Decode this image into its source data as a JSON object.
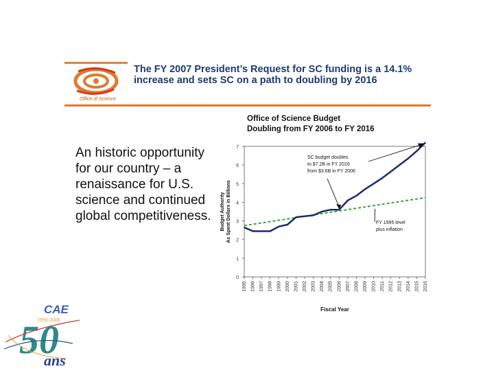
{
  "slide": {
    "logo_label": "Office of Science",
    "title": "The FY 2007 President’s Request for SC funding is a 14.1% increase and sets SC on a path to doubling by 2016",
    "body": "An historic opportunity for our country – a renaissance for U.S. science and continued global competitiveness.",
    "anniversary_logo": {
      "dates": "1956-2006",
      "letters": "CAE",
      "number": "50",
      "word": "ans"
    }
  },
  "colors": {
    "accent_orange": "#e07a2e",
    "title_blue": "#1f3a70",
    "budget_line": "#1c2a6e",
    "inflation_line": "#2fa83a"
  },
  "chart_data": {
    "type": "line",
    "title_line1": "Office of Science Budget",
    "title_line2": "Doubling from FY 2006 to FY 2016",
    "xlabel": "Fiscal Year",
    "ylabel_line1": "Budget Authority",
    "ylabel_line2": "As Spent Dollars in Billions",
    "ylim": [
      0,
      7
    ],
    "yticks": [
      0,
      1,
      2,
      3,
      4,
      5,
      6,
      7
    ],
    "x_tick_labels": [
      "1995",
      "1996",
      "1997",
      "1998",
      "1999",
      "2000",
      "2001",
      "2002",
      "2003",
      "2004",
      "2005",
      "2006",
      "2007",
      "2008",
      "2009",
      "2010",
      "2011",
      "2012",
      "2013",
      "2014",
      "2015",
      "2016"
    ],
    "series": [
      {
        "x": [
          1995,
          1996,
          1997,
          1998,
          1999,
          2000,
          2001,
          2002,
          2003,
          2004,
          2005,
          2006,
          2007,
          2008,
          2009,
          2010,
          2011,
          2012,
          2013,
          2014,
          2015,
          2016
        ],
        "values": [
          2.65,
          2.45,
          2.45,
          2.45,
          2.7,
          2.8,
          3.2,
          3.25,
          3.3,
          3.5,
          3.6,
          3.6,
          4.1,
          4.35,
          4.7,
          5.0,
          5.3,
          5.65,
          6.0,
          6.35,
          6.75,
          7.2
        ]
      },
      {
        "x": [
          1995,
          2016
        ],
        "values": [
          2.75,
          4.25
        ]
      }
    ],
    "annotations": [
      {
        "text_line1": "SC budget doubles",
        "text_line2": "to $7.2B in FY 2016",
        "text_line3": "from $3.6B in FY 2006"
      },
      {
        "text_line1": "FY 1995 level",
        "text_line2": "plus inflation"
      }
    ],
    "grid": false
  }
}
